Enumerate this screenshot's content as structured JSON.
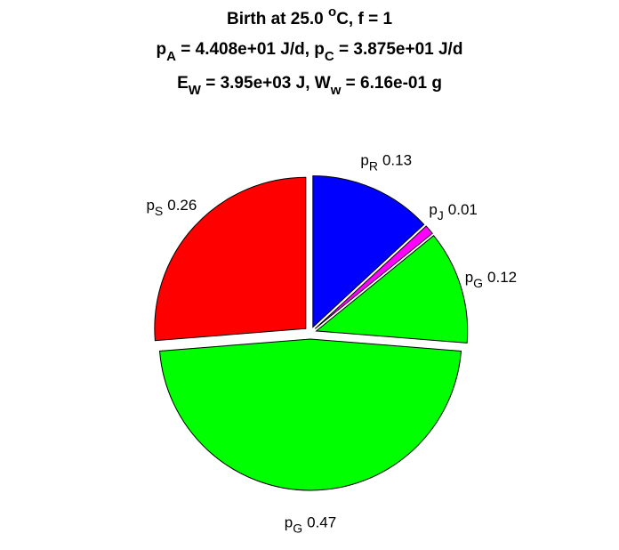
{
  "chart_data": {
    "type": "pie",
    "title": [
      [
        {
          "text": "Birth at 25.0 "
        },
        {
          "sup": "o"
        },
        {
          "text": "C, f = 1"
        }
      ],
      [
        {
          "text": "p"
        },
        {
          "sub": "A"
        },
        {
          "text": " = 4.408e+01 J/d, p"
        },
        {
          "sub": "C"
        },
        {
          "text": " = 3.875e+01 J/d"
        }
      ],
      [
        {
          "text": "E"
        },
        {
          "sub": "W"
        },
        {
          "text": " = 3.95e+03 J, W"
        },
        {
          "sub": "w"
        },
        {
          "text": " = 6.16e-01 g"
        }
      ]
    ],
    "categories": [
      [
        "p",
        "R"
      ],
      [
        "p",
        "J"
      ],
      [
        "p",
        "G"
      ],
      [
        "p",
        "G"
      ],
      [
        "p",
        "S"
      ]
    ],
    "values": [
      0.13,
      0.01,
      0.12,
      0.47,
      0.26
    ],
    "colors": [
      "#0000ff",
      "#ff00ff",
      "#00ff00",
      "#00ff00",
      "#ff0000"
    ]
  }
}
